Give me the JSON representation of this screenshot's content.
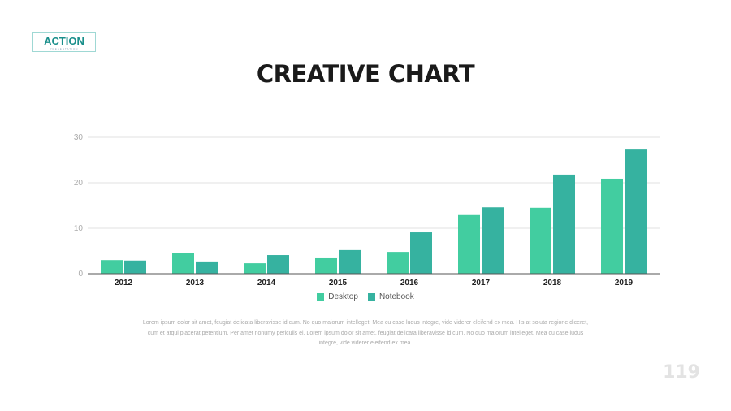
{
  "logo": {
    "main": "ACTION",
    "sub": "PRESENTATION"
  },
  "title": "CREATIVE CHART",
  "chart_data": {
    "type": "bar",
    "title": "",
    "categories": [
      "2012",
      "2013",
      "2014",
      "2015",
      "2016",
      "2017",
      "2018",
      "2019"
    ],
    "series": [
      {
        "name": "Desktop",
        "color": "#42cda0",
        "values": [
          3.0,
          4.6,
          2.3,
          3.4,
          4.8,
          12.9,
          14.5,
          20.9
        ]
      },
      {
        "name": "Notebook",
        "color": "#36b2a0",
        "values": [
          2.9,
          2.7,
          4.1,
          5.2,
          9.1,
          14.6,
          21.8,
          27.3
        ]
      }
    ],
    "yticks": [
      "0",
      "10",
      "20",
      "30"
    ],
    "ylim": [
      0,
      30
    ],
    "grid": true,
    "legend": "bottom"
  },
  "body_text": "Lorem ipsum dolor sit amet, feugiat delicata liberavisse id cum. No quo maiorum intelleget. Mea cu case ludus integre, vide viderer eleifend ex mea. His at soluta regione diceret, cum et atqui placerat petentium. Per amet nonumy periculis ei. Lorem ipsum dolor sit amet, feugiat delicata liberavisse id cum. No quo maiorum intelleget. Mea cu case ludus integre, vide viderer eleifend ex mea.",
  "page_number": "119"
}
